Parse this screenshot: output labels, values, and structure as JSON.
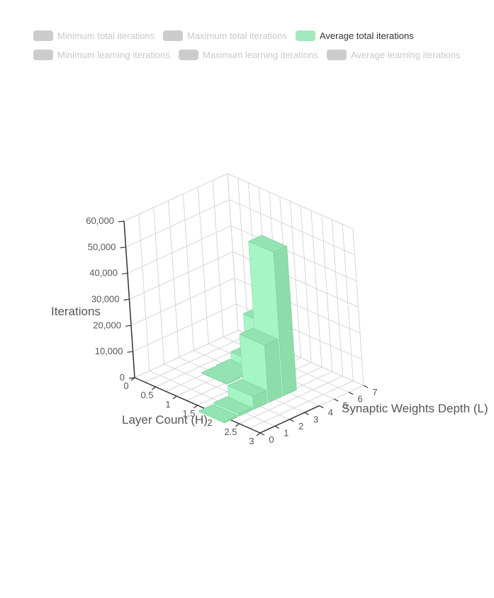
{
  "legend": {
    "items": [
      {
        "label": "Minimum total iterations",
        "color": "#cccccc",
        "active": false
      },
      {
        "label": "Maximum total iterations",
        "color": "#cccccc",
        "active": false
      },
      {
        "label": "Average total iterations",
        "color": "#a2e8be",
        "active": true
      },
      {
        "label": "Minimum learning iterations",
        "color": "#cccccc",
        "active": false
      },
      {
        "label": "Maximum learning iterations",
        "color": "#cccccc",
        "active": false
      },
      {
        "label": "Average learning iterations",
        "color": "#cccccc",
        "active": false
      }
    ],
    "active_text_color": "#333333",
    "inactive_text_color": "#c8c8c8"
  },
  "chart_data": {
    "type": "bar",
    "projection": "3d",
    "axes": {
      "y": {
        "title": "Iterations",
        "ticks": [
          "0",
          "10,000",
          "20,000",
          "30,000",
          "40,000",
          "50,000",
          "60,000"
        ],
        "range": [
          0,
          60000
        ]
      },
      "x": {
        "title": "Layer Count (H)",
        "ticks": [
          "0",
          "0.5",
          "1",
          "1.5",
          "2",
          "2.5",
          "3"
        ],
        "range": [
          0,
          3
        ]
      },
      "z": {
        "title": "Synaptic Weights Depth (L)",
        "ticks": [
          "0",
          "1",
          "2",
          "3",
          "4",
          "5",
          "6",
          "7"
        ],
        "range": [
          0,
          7
        ]
      }
    },
    "series": [
      {
        "name": "Average total iterations",
        "color": "#a6f5c4",
        "points": [
          {
            "x": 1,
            "z": 3,
            "y": 300
          },
          {
            "x": 1,
            "z": 4,
            "y": 500
          },
          {
            "x": 1,
            "z": 5,
            "y": 3000
          },
          {
            "x": 1,
            "z": 6,
            "y": 15000
          },
          {
            "x": 2,
            "z": 0,
            "y": 500
          },
          {
            "x": 2,
            "z": 1,
            "y": 1000
          },
          {
            "x": 2,
            "z": 2,
            "y": 5000
          },
          {
            "x": 2,
            "z": 3,
            "y": 22000
          },
          {
            "x": 2,
            "z": 4,
            "y": 55000
          }
        ]
      }
    ],
    "grid": true,
    "legend_position": "top"
  }
}
